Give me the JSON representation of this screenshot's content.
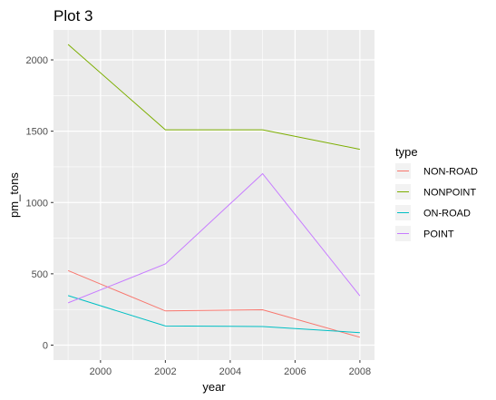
{
  "chart_data": {
    "type": "line",
    "title": "Plot 3",
    "xlabel": "year",
    "ylabel": "pm_tons",
    "x": [
      1999,
      2002,
      2005,
      2008
    ],
    "xlim": [
      1998.55,
      2008.45
    ],
    "ylim": [
      -105,
      2210
    ],
    "xticks": [
      2000,
      2002,
      2004,
      2006,
      2008
    ],
    "yticks": [
      0,
      500,
      1000,
      1500,
      2000
    ],
    "grid": true,
    "legend": {
      "title": "type",
      "placement": "right"
    },
    "series": [
      {
        "name": "NON-ROAD",
        "color": "#F8766D",
        "values": [
          523,
          240,
          248,
          55
        ]
      },
      {
        "name": "NONPOINT",
        "color": "#7CAE00",
        "values": [
          2108,
          1510,
          1510,
          1373
        ]
      },
      {
        "name": "ON-ROAD",
        "color": "#00BFC4",
        "values": [
          347,
          134,
          130,
          88
        ]
      },
      {
        "name": "POINT",
        "color": "#C77CFF",
        "values": [
          296,
          569,
          1202,
          345
        ]
      }
    ]
  }
}
